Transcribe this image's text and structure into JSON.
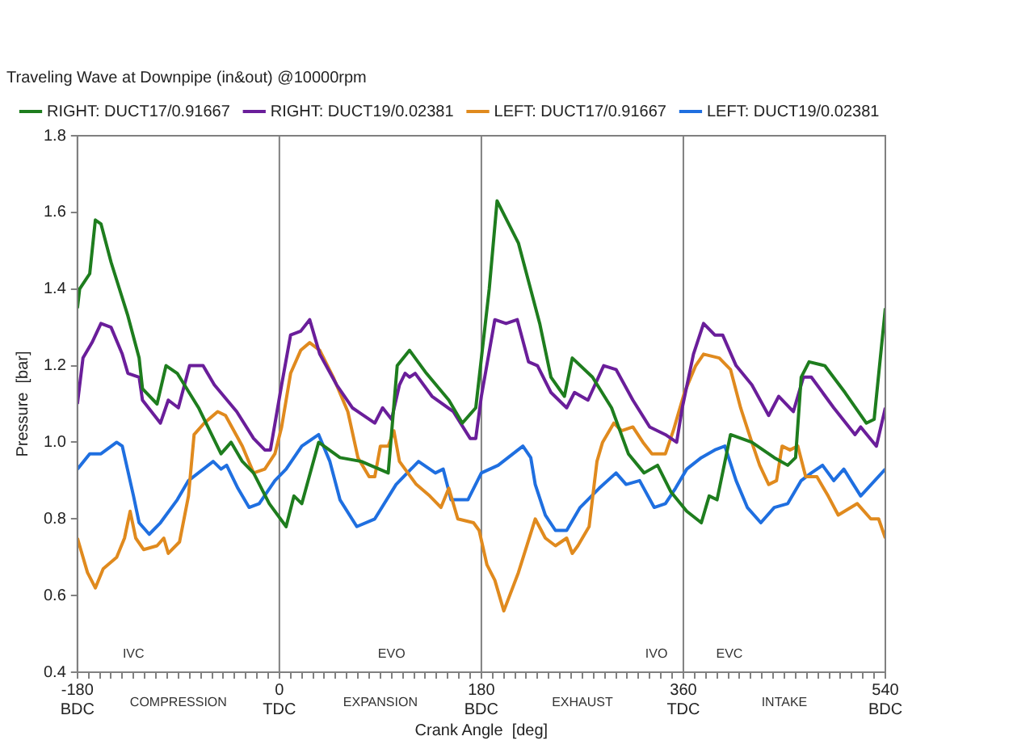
{
  "chart_data": {
    "type": "line",
    "title": "Traveling Wave at Downpipe (in&out) @10000rpm",
    "xlabel": "Crank Angle  [deg]",
    "ylabel": "Pressure  [bar]",
    "legend": "top",
    "grid": false,
    "marker": "none",
    "line_style": "solid",
    "xlim": [
      -180,
      540
    ],
    "ylim": [
      0.4,
      1.8
    ],
    "xticks": [
      {
        "value": -180,
        "label": "-180\nBDC"
      },
      {
        "value": -170,
        "label": null
      },
      {
        "value": -160,
        "label": null
      },
      {
        "value": -150,
        "label": null
      },
      {
        "value": -140,
        "label": null
      },
      {
        "value": -130,
        "label": null
      },
      {
        "value": -120,
        "label": null
      },
      {
        "value": -110,
        "label": null
      },
      {
        "value": -100,
        "label": null
      },
      {
        "value": -90,
        "label": null
      },
      {
        "value": -80,
        "label": null
      },
      {
        "value": -70,
        "label": null
      },
      {
        "value": -60,
        "label": null
      },
      {
        "value": -50,
        "label": null
      },
      {
        "value": -40,
        "label": null
      },
      {
        "value": -30,
        "label": null
      },
      {
        "value": -20,
        "label": null
      },
      {
        "value": -10,
        "label": null
      },
      {
        "value": 0,
        "label": "0\nTDC"
      },
      {
        "value": 10,
        "label": null
      },
      {
        "value": 20,
        "label": null
      },
      {
        "value": 30,
        "label": null
      },
      {
        "value": 40,
        "label": null
      },
      {
        "value": 50,
        "label": null
      },
      {
        "value": 60,
        "label": null
      },
      {
        "value": 70,
        "label": null
      },
      {
        "value": 80,
        "label": null
      },
      {
        "value": 90,
        "label": null
      },
      {
        "value": 100,
        "label": null
      },
      {
        "value": 110,
        "label": null
      },
      {
        "value": 120,
        "label": null
      },
      {
        "value": 130,
        "label": null
      },
      {
        "value": 140,
        "label": null
      },
      {
        "value": 150,
        "label": null
      },
      {
        "value": 160,
        "label": null
      },
      {
        "value": 170,
        "label": null
      },
      {
        "value": 180,
        "label": "180\nBDC"
      },
      {
        "value": 190,
        "label": null
      },
      {
        "value": 200,
        "label": null
      },
      {
        "value": 210,
        "label": null
      },
      {
        "value": 220,
        "label": null
      },
      {
        "value": 230,
        "label": null
      },
      {
        "value": 240,
        "label": null
      },
      {
        "value": 250,
        "label": null
      },
      {
        "value": 260,
        "label": null
      },
      {
        "value": 270,
        "label": null
      },
      {
        "value": 280,
        "label": null
      },
      {
        "value": 290,
        "label": null
      },
      {
        "value": 300,
        "label": null
      },
      {
        "value": 310,
        "label": null
      },
      {
        "value": 320,
        "label": null
      },
      {
        "value": 330,
        "label": null
      },
      {
        "value": 340,
        "label": null
      },
      {
        "value": 350,
        "label": null
      },
      {
        "value": 360,
        "label": "360\nTDC"
      },
      {
        "value": 370,
        "label": null
      },
      {
        "value": 380,
        "label": null
      },
      {
        "value": 390,
        "label": null
      },
      {
        "value": 400,
        "label": null
      },
      {
        "value": 410,
        "label": null
      },
      {
        "value": 420,
        "label": null
      },
      {
        "value": 430,
        "label": null
      },
      {
        "value": 440,
        "label": null
      },
      {
        "value": 450,
        "label": null
      },
      {
        "value": 460,
        "label": null
      },
      {
        "value": 470,
        "label": null
      },
      {
        "value": 480,
        "label": null
      },
      {
        "value": 490,
        "label": null
      },
      {
        "value": 500,
        "label": null
      },
      {
        "value": 510,
        "label": null
      },
      {
        "value": 520,
        "label": null
      },
      {
        "value": 530,
        "label": null
      },
      {
        "value": 540,
        "label": "540\nBDC"
      }
    ],
    "yticks": [
      0.4,
      0.6,
      0.8,
      {
        "value": 1,
        "label": "1.0"
      },
      1.2,
      1.4,
      1.6,
      1.8
    ],
    "ref_lines": [
      {
        "axis": "x",
        "value": 0,
        "color": "#808080"
      },
      {
        "axis": "x",
        "value": 180,
        "color": "#808080"
      },
      {
        "axis": "x",
        "value": 360,
        "color": "#808080"
      }
    ],
    "annotations": [
      "IVC",
      "EVO",
      "IVO",
      "EVC",
      "COMPRESSION",
      "EXPANSION",
      "EXHAUST",
      "INTAKE"
    ],
    "series": [
      {
        "name": "RIGHT: DUCT17/0.91667",
        "color": "#1e7d1e",
        "x": [
          -180,
          -178,
          -169,
          -164,
          -159,
          -150,
          -135,
          -125,
          -122,
          -109,
          -101,
          -91,
          -72,
          -52,
          -43,
          -33,
          -23,
          -9,
          6,
          13,
          20,
          35,
          54,
          73,
          97,
          105,
          116,
          131,
          151,
          163,
          175,
          187,
          194,
          213,
          232,
          242,
          254,
          261,
          279,
          296,
          311,
          325,
          337,
          349,
          363,
          376,
          383,
          390,
          402,
          421,
          441,
          453,
          460,
          465,
          472,
          486,
          504,
          523,
          530,
          540
        ],
        "values": [
          1.35,
          1.4,
          1.44,
          1.58,
          1.57,
          1.47,
          1.33,
          1.22,
          1.14,
          1.1,
          1.2,
          1.18,
          1.09,
          0.97,
          1.0,
          0.95,
          0.92,
          0.84,
          0.78,
          0.86,
          0.84,
          1.0,
          0.96,
          0.95,
          0.92,
          1.2,
          1.24,
          1.18,
          1.11,
          1.05,
          1.09,
          1.4,
          1.63,
          1.52,
          1.31,
          1.17,
          1.12,
          1.22,
          1.17,
          1.09,
          0.97,
          0.92,
          0.94,
          0.87,
          0.82,
          0.79,
          0.86,
          0.85,
          1.02,
          1.0,
          0.96,
          0.94,
          0.96,
          1.17,
          1.21,
          1.2,
          1.13,
          1.05,
          1.06,
          1.35
        ]
      },
      {
        "name": "RIGHT: DUCT19/0.02381",
        "color": "#6a1e9a",
        "x": [
          -180,
          -175,
          -167,
          -159,
          -150,
          -140,
          -135,
          -125,
          -122,
          -106,
          -99,
          -90,
          -80,
          -68,
          -58,
          -38,
          -23,
          -13,
          -8,
          2,
          10,
          19,
          27,
          36,
          51,
          65,
          85,
          92,
          100,
          107,
          112,
          116,
          121,
          136,
          155,
          170,
          175,
          180,
          192,
          202,
          212,
          222,
          230,
          242,
          256,
          263,
          275,
          289,
          300,
          315,
          330,
          344,
          354,
          359,
          369,
          378,
          388,
          395,
          407,
          421,
          436,
          445,
          458,
          467,
          474,
          494,
          513,
          518,
          532,
          540
        ],
        "values": [
          1.1,
          1.22,
          1.26,
          1.31,
          1.3,
          1.23,
          1.18,
          1.17,
          1.11,
          1.05,
          1.11,
          1.09,
          1.2,
          1.2,
          1.15,
          1.08,
          1.01,
          0.98,
          0.98,
          1.15,
          1.28,
          1.29,
          1.32,
          1.23,
          1.15,
          1.09,
          1.05,
          1.09,
          1.06,
          1.15,
          1.18,
          1.17,
          1.18,
          1.12,
          1.08,
          1.01,
          1.01,
          1.12,
          1.32,
          1.31,
          1.32,
          1.21,
          1.2,
          1.13,
          1.09,
          1.13,
          1.11,
          1.2,
          1.19,
          1.11,
          1.04,
          1.02,
          1.0,
          1.09,
          1.23,
          1.31,
          1.28,
          1.28,
          1.2,
          1.15,
          1.07,
          1.12,
          1.08,
          1.17,
          1.17,
          1.09,
          1.02,
          1.04,
          0.99,
          1.09
        ]
      },
      {
        "name": "LEFT: DUCT17/0.91667",
        "color": "#e08a1e",
        "x": [
          -180,
          -171,
          -164,
          -157,
          -145,
          -138,
          -133,
          -128,
          -121,
          -109,
          -103,
          -99,
          -89,
          -81,
          -76,
          -67,
          -55,
          -48,
          -33,
          -23,
          -13,
          -4,
          2,
          10,
          19,
          27,
          36,
          48,
          61,
          70,
          80,
          85,
          90,
          97,
          102,
          107,
          112,
          122,
          134,
          144,
          151,
          159,
          173,
          178,
          185,
          192,
          200,
          213,
          228,
          237,
          246,
          256,
          261,
          266,
          276,
          283,
          288,
          298,
          305,
          315,
          324,
          332,
          344,
          351,
          361,
          371,
          378,
          392,
          402,
          411,
          421,
          428,
          436,
          443,
          448,
          455,
          462,
          469,
          479,
          489,
          498,
          515,
          527,
          534,
          540
        ],
        "values": [
          0.75,
          0.66,
          0.62,
          0.67,
          0.7,
          0.75,
          0.82,
          0.75,
          0.72,
          0.73,
          0.75,
          0.71,
          0.74,
          0.86,
          1.02,
          1.05,
          1.08,
          1.07,
          0.99,
          0.92,
          0.93,
          0.97,
          1.04,
          1.18,
          1.24,
          1.26,
          1.24,
          1.17,
          1.08,
          0.96,
          0.91,
          0.91,
          0.99,
          0.99,
          1.03,
          0.95,
          0.93,
          0.89,
          0.86,
          0.83,
          0.88,
          0.8,
          0.79,
          0.77,
          0.68,
          0.64,
          0.56,
          0.66,
          0.8,
          0.75,
          0.73,
          0.75,
          0.71,
          0.73,
          0.78,
          0.95,
          1.0,
          1.05,
          1.03,
          1.04,
          1.0,
          0.97,
          0.97,
          1.03,
          1.13,
          1.2,
          1.23,
          1.22,
          1.19,
          1.09,
          1.0,
          0.94,
          0.89,
          0.9,
          0.99,
          0.98,
          0.99,
          0.91,
          0.91,
          0.86,
          0.81,
          0.84,
          0.8,
          0.8,
          0.75
        ]
      },
      {
        "name": "LEFT: DUCT19/0.02381",
        "color": "#1f6fe0",
        "x": [
          -180,
          -169,
          -159,
          -145,
          -140,
          -130,
          -125,
          -116,
          -106,
          -91,
          -81,
          -59,
          -52,
          -47,
          -37,
          -27,
          -18,
          -4,
          6,
          20,
          35,
          45,
          54,
          69,
          85,
          104,
          124,
          139,
          146,
          153,
          168,
          180,
          195,
          217,
          224,
          228,
          237,
          246,
          256,
          268,
          285,
          300,
          309,
          321,
          334,
          344,
          353,
          363,
          376,
          388,
          397,
          407,
          417,
          429,
          441,
          453,
          465,
          474,
          484,
          494,
          503,
          518,
          540
        ],
        "values": [
          0.93,
          0.97,
          0.97,
          1.0,
          0.99,
          0.86,
          0.79,
          0.76,
          0.79,
          0.85,
          0.9,
          0.95,
          0.93,
          0.94,
          0.88,
          0.83,
          0.84,
          0.9,
          0.93,
          0.99,
          1.02,
          0.95,
          0.85,
          0.78,
          0.8,
          0.89,
          0.95,
          0.92,
          0.93,
          0.85,
          0.85,
          0.92,
          0.94,
          0.99,
          0.96,
          0.89,
          0.81,
          0.77,
          0.77,
          0.83,
          0.88,
          0.92,
          0.89,
          0.9,
          0.83,
          0.84,
          0.88,
          0.93,
          0.96,
          0.98,
          0.99,
          0.9,
          0.83,
          0.79,
          0.83,
          0.84,
          0.9,
          0.92,
          0.94,
          0.9,
          0.93,
          0.86,
          0.93
        ]
      }
    ]
  }
}
